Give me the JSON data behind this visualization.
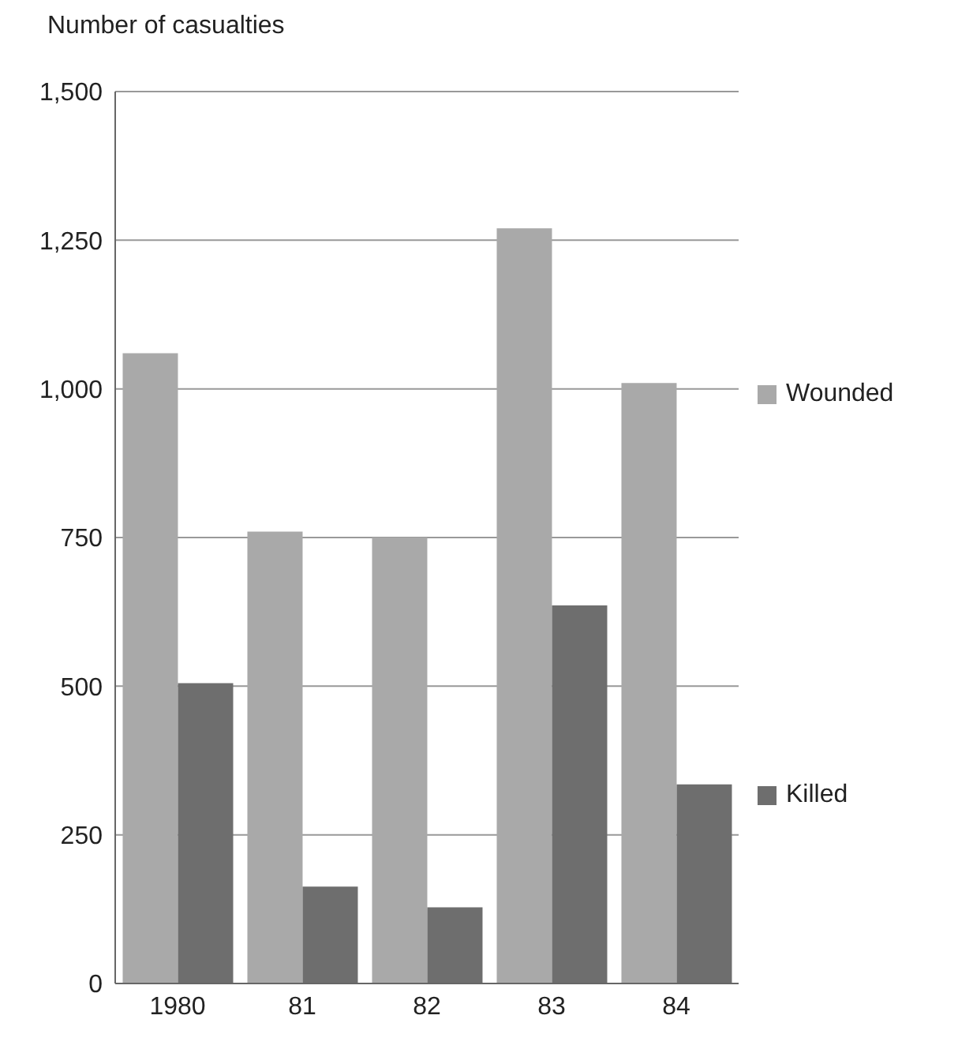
{
  "chart_data": {
    "type": "bar",
    "ylabel": "Number of casualties",
    "categories": [
      "1980",
      "81",
      "82",
      "83",
      "84"
    ],
    "series": [
      {
        "name": "Wounded",
        "color": "#a9a9a9",
        "values": [
          1060,
          760,
          750,
          1270,
          1010
        ]
      },
      {
        "name": "Killed",
        "color": "#6e6e6e",
        "values": [
          505,
          163,
          128,
          636,
          335
        ]
      }
    ],
    "ylim": [
      0,
      1500
    ],
    "yticks": [
      0,
      250,
      500,
      750,
      {
        "value": 1000,
        "label": "1,000"
      },
      {
        "value": 1250,
        "label": "1,250"
      },
      {
        "value": 1500,
        "label": "1,500"
      }
    ],
    "grid": "y",
    "legend": "right"
  }
}
